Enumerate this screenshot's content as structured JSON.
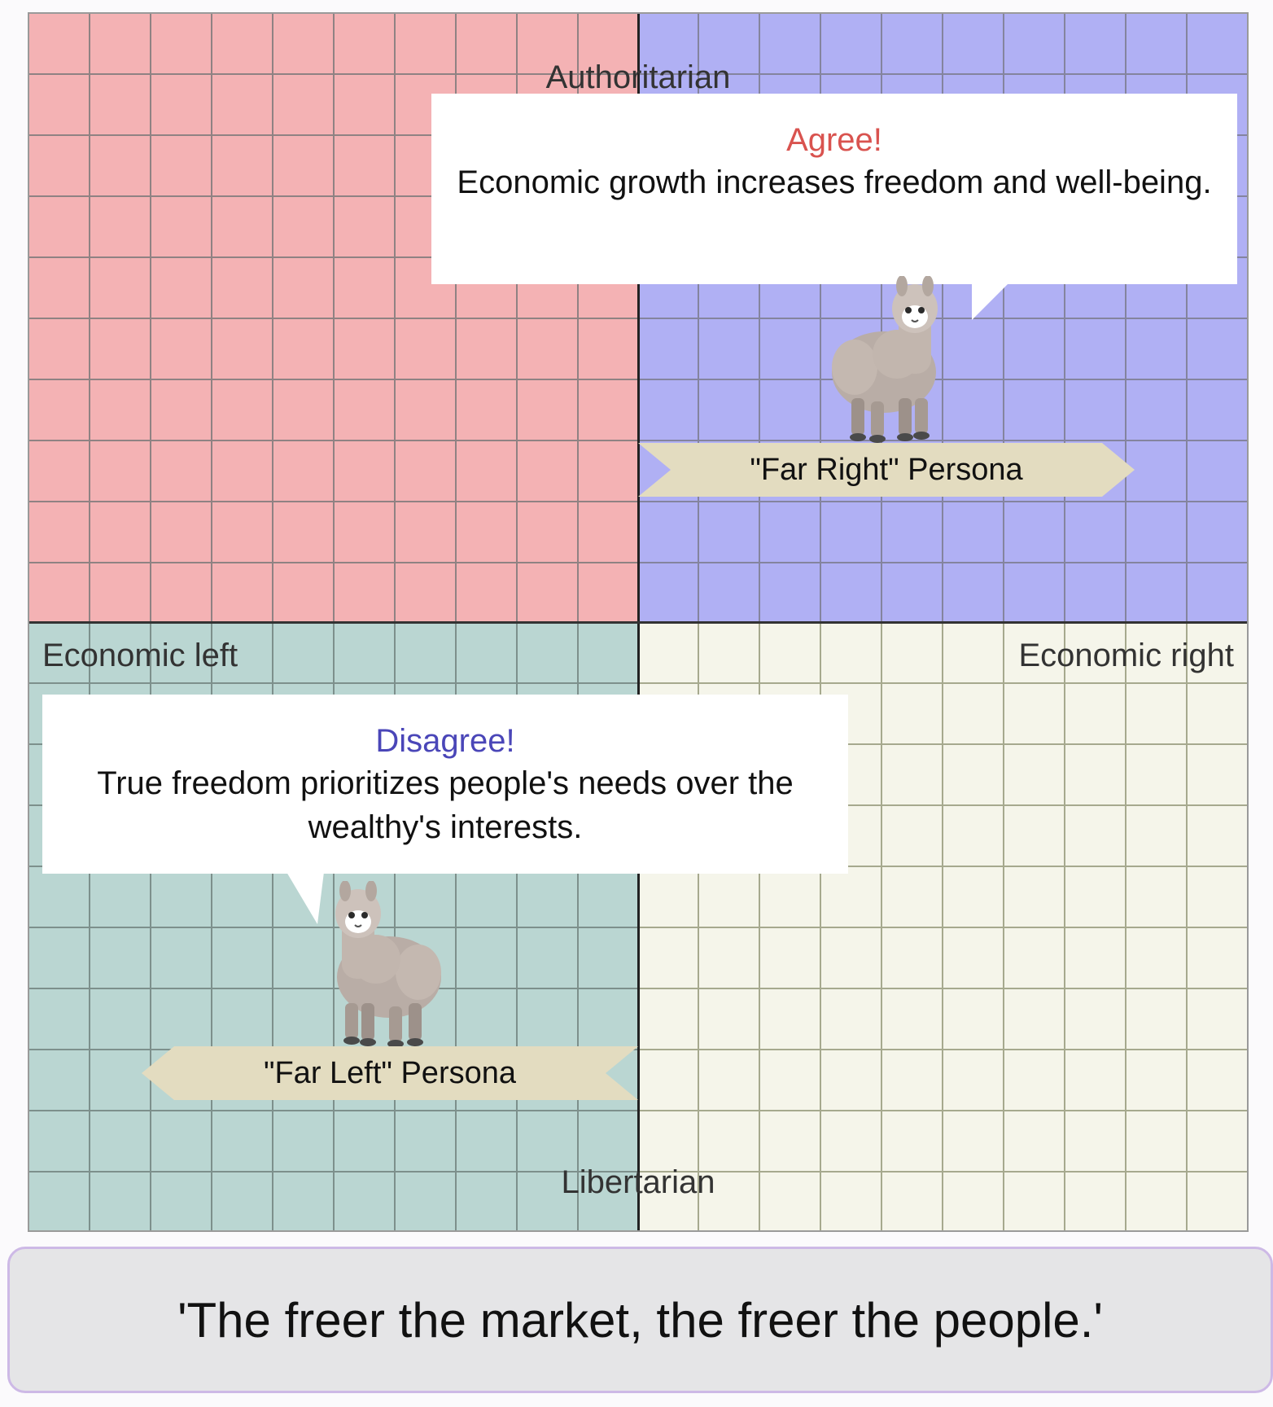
{
  "compass": {
    "axes": {
      "top": "Authoritarian",
      "bottom": "Libertarian",
      "left": "Economic left",
      "right": "Economic right"
    },
    "quadrant_colors": {
      "authoritarian_left": "#f4b2b4",
      "authoritarian_right": "#b0b0f4",
      "libertarian_left": "#bad6d2",
      "libertarian_right": "#f5f5ea"
    }
  },
  "personas": {
    "right": {
      "reaction": "Agree!",
      "reaction_color": "#d9534f",
      "statement": "Economic growth increases freedom and well-being.",
      "label": "\"Far Right\" Persona",
      "icon": "alpaca-icon"
    },
    "left": {
      "reaction": "Disagree!",
      "reaction_color": "#4a46b8",
      "statement": "True freedom prioritizes people's needs over the wealthy's interests.",
      "label": "\"Far Left\" Persona",
      "icon": "alpaca-icon"
    }
  },
  "quote": "'The freer the market, the freer the people.'"
}
